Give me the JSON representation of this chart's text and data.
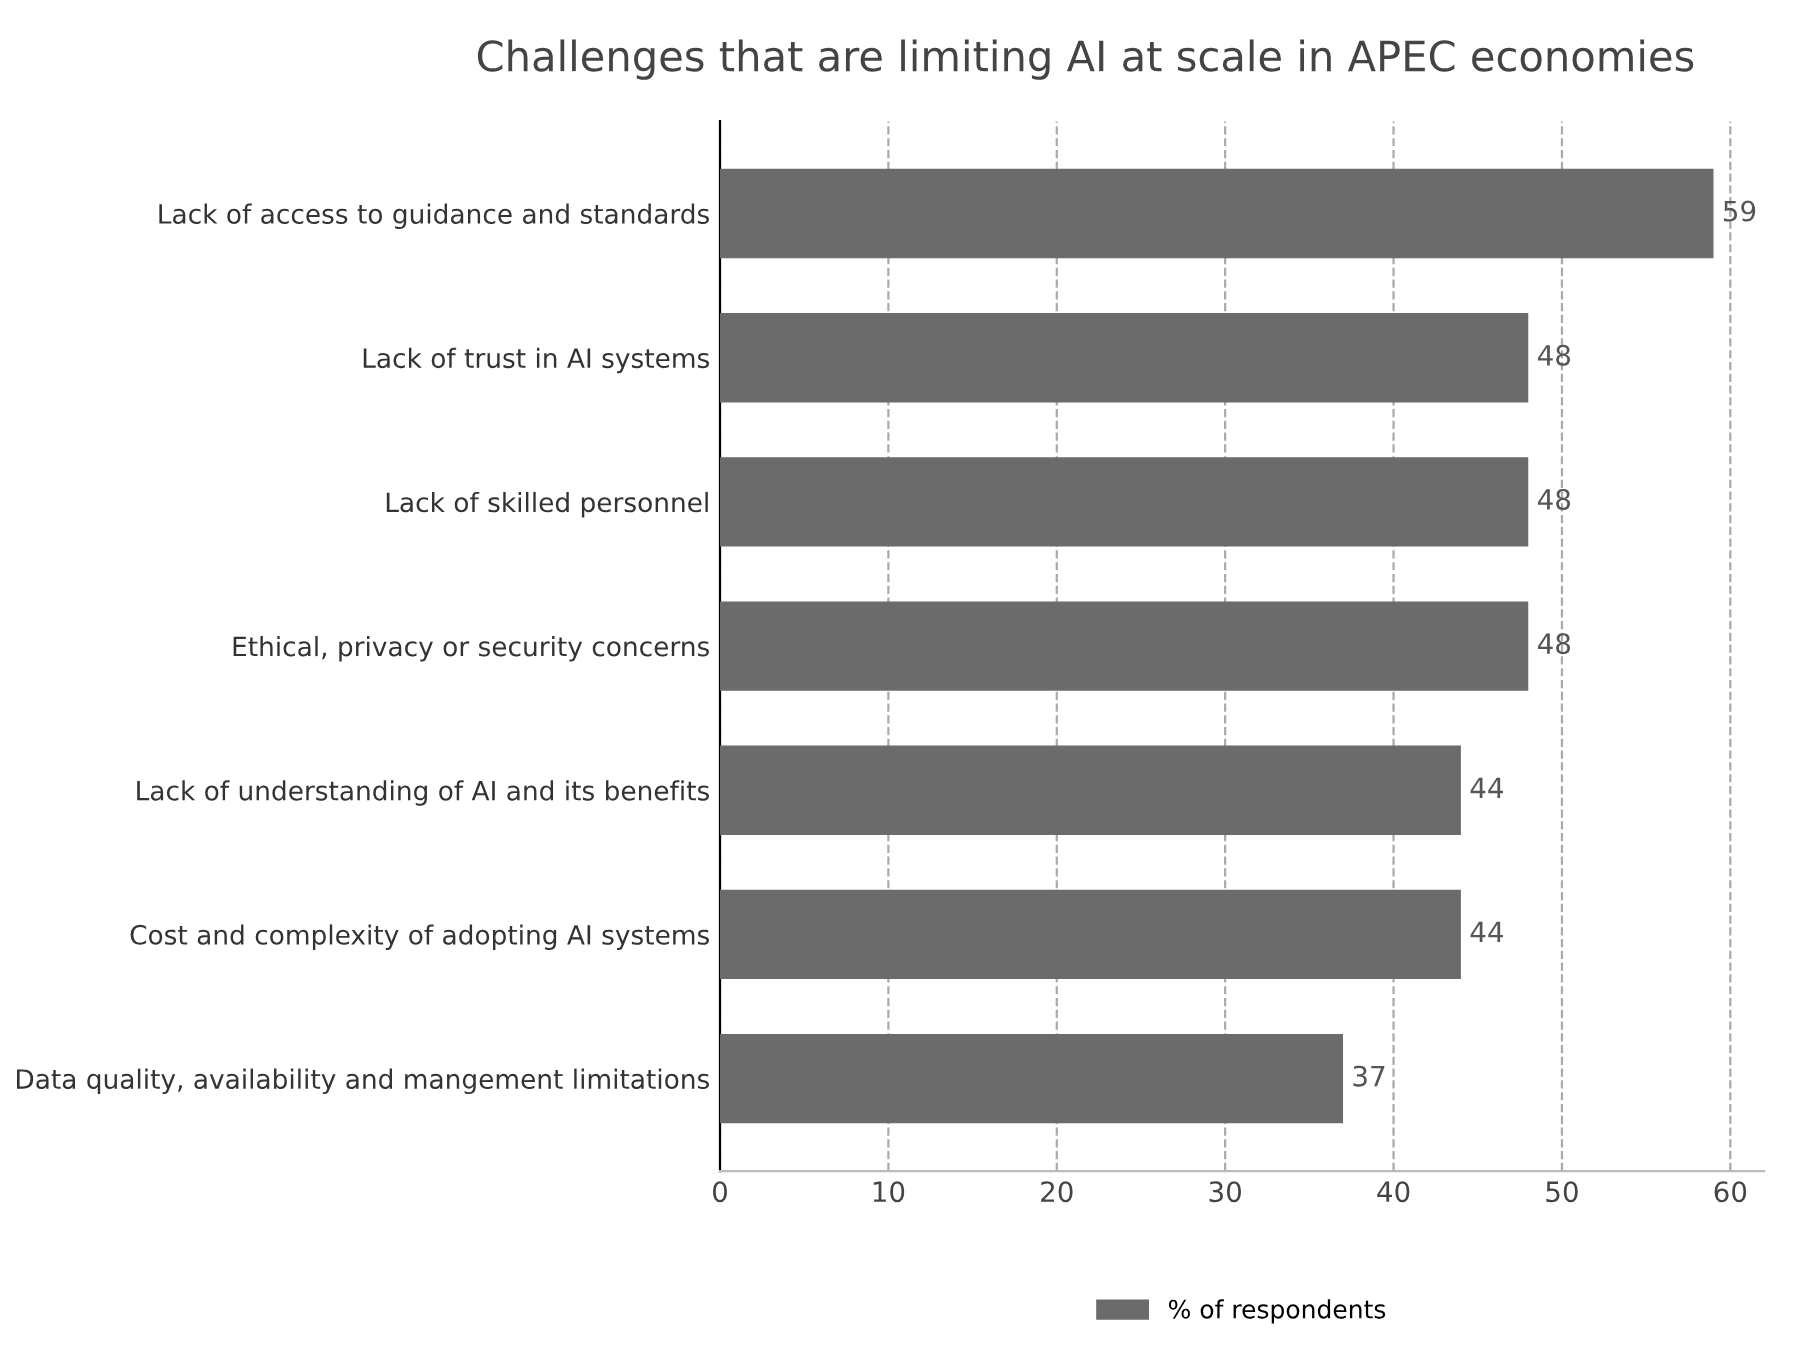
{
  "chart_data": {
    "type": "bar",
    "orientation": "horizontal",
    "title": "Challenges that are limiting AI at scale in APEC economies",
    "categories": [
      "Lack of access to guidance and standards",
      "Lack of trust in AI systems",
      "Lack of skilled personnel",
      "Ethical, privacy or security concerns",
      "Lack of understanding of AI and its benefits",
      "Cost and complexity of adopting AI systems",
      "Data quality, availability and mangement limitations"
    ],
    "series": [
      {
        "name": "% of respondents",
        "color": "#6b6b6b",
        "values": [
          59,
          48,
          48,
          48,
          44,
          44,
          37
        ]
      }
    ],
    "xlim": [
      0,
      62
    ],
    "xticks": [
      0,
      10,
      20,
      30,
      40,
      50,
      60
    ],
    "grid": "x",
    "legend": "bottom",
    "data_labels": true
  }
}
